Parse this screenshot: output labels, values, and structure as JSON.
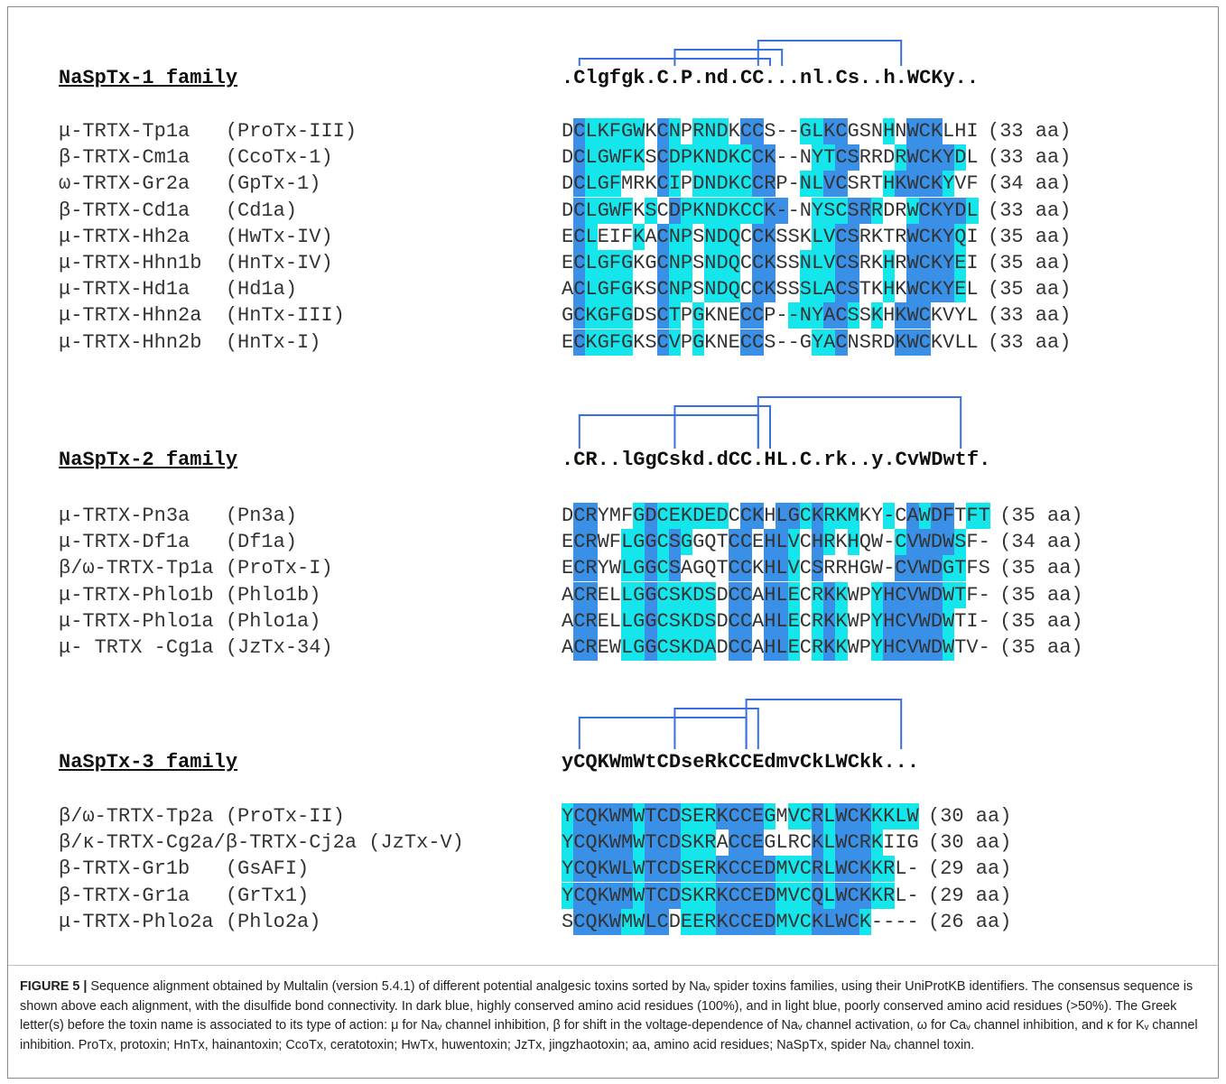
{
  "families": [
    {
      "title": "NaSpTx-1 family",
      "consensus": ".Clgfgk.C.P.nd.CC...nl.Cs..h.WCKy..",
      "title_top": 74,
      "first_row_top": 131,
      "bonds": {
        "bar_top": 45,
        "bar_bottom": 73,
        "links": [
          [
            1,
            17,
            28
          ],
          [
            9,
            18,
            23
          ],
          [
            16,
            28,
            10
          ]
        ]
      },
      "rows": [
        {
          "name": "μ-TRTX-Tp1a   (ProTx-III)",
          "seq": "DCLKFGWKCNPRNDKCCS--GLKCGSNHNWCKLHI",
          "cls": ".dlllll.dl.lll.dd...lldd...l.ddd...",
          "len": "(33 aa)"
        },
        {
          "name": "β-TRTX-Cm1a   (CcoTx-1)",
          "seq": "DCLGWFKSCDPKNDKCCK--NYTCSRRDRWCKYDL",
          "cls": ".dlllll.dllllllldd...lldd...lddddl..",
          "len": "(33 aa)"
        },
        {
          "name": "ω-TRTX-Gr2a   (GpTx-1)",
          "seq": "DCLGFMRKCIPDNDKCCRP-NLVCSRTHKWCKYVF",
          "cls": ".dlll...dl.llllldd..lldd...lddddl..",
          "len": "(34 aa)"
        },
        {
          "name": "β-TRTX-Cd1a   (Cd1a)",
          "seq": "DCLGWFKSCDPKNDKCCK--NYSCSRRDRWCKYDL",
          "cls": ".dllll.l.dllllllldd..lllddl..lddddl..",
          "len": "(33 aa)"
        },
        {
          "name": "μ-TRTX-Hh2a   (HwTx-IV)",
          "seq": "ECLEIFKACNPSNDQCCKSSKLVCSRKTRWCKYQI",
          "cls": ".dl...l.dll.lll.dd...lldd....ddddl..",
          "len": "(35 aa)"
        },
        {
          "name": "μ-TRTX-Hhn1b  (HnTx-IV)",
          "seq": "ECLGFGKGCNPSNDQCCKSSNLVCSRKHRWCKYEI",
          "cls": ".dllll..dll.lll.dd..llldd..l.ddddl..",
          "len": "(35 aa)"
        },
        {
          "name": "μ-TRTX-Hd1a   (Hd1a)",
          "seq": "ACLGFGKSCNPSNDQCCKSSSLACSTKHKWCKYEL",
          "cls": ".dllll..dll.lll.dd..llldd..l.ddddl..",
          "len": "(35 aa)"
        },
        {
          "name": "μ-TRTX-Hhn2a  (HnTx-III)",
          "seq": "GCKGFGDSCTPGKNECCP--NYACSSKHKWCKVYL",
          "cls": ".dllll..dl.l...dd..lllddl.l.ddd...",
          "len": "(33 aa)"
        },
        {
          "name": "μ-TRTX-Hhn2b  (HnTx-I)",
          "seq": "ECKGFGKSCVPGKNECCS--GYACNSRDKWCKVLL",
          "cls": ".dllll..dl.l...dd....lld....ddd...",
          "len": "(33 aa)"
        }
      ]
    },
    {
      "title": "NaSpTx-2 family",
      "consensus": ".CR..lGgCskd.dCC.HL.C.rk..y.CvWDwtf.",
      "title_top": 497,
      "first_row_top": 557,
      "bonds": {
        "bar_top": 440,
        "bar_bottom": 497,
        "links": [
          [
            1,
            16,
            30
          ],
          [
            9,
            17,
            25
          ],
          [
            16,
            33,
            10
          ]
        ]
      },
      "rows": [
        {
          "name": "μ-TRTX-Pn3a   (Pn3a)",
          "seq": "DCRYMFGDCEKDEDCCKHLGCKRKMKY-CAWDFTFT",
          "cls": ".dd...ldllllll.dd.ddldlll..l.dldd.ll.",
          "len": "(35 aa)"
        },
        {
          "name": "μ-TRTX-Df1a   (Df1a)",
          "seq": "ECRWFLGGCSGGQTCCEHLVCHRKHQW-CVWDWSF-",
          "cls": ".dd..lldldl...dd.ddl.dl.l...lddddl.",
          "len": "(34 aa)"
        },
        {
          "name": "β/ω-TRTX-Tp1a (ProTx-I)",
          "seq": "ECRYWLGGCSAGQTCCKHLVCSRRHGW-CVWDGTFS",
          "cls": ".dd..lldld....dd.ddl.d......ddddll.",
          "len": "(35 aa)"
        },
        {
          "name": "μ-TRTX-Phlo1b (Phlo1b)",
          "seq": "ACRELLGGCSKDSDCCAHLECRKKWPYHCVWDWTF-",
          "cls": ".dd..lldlllll.dd.ddl.ldl..ldddddll.",
          "len": "(35 aa)"
        },
        {
          "name": "μ-TRTX-Phlo1a (Phlo1a)",
          "seq": "ACRELLGGCSKDSDCCAHLECRKKWPYHCVWDWTI-",
          "cls": ".dd..lldlllll.dd.ddl.ldl..ldddddl..",
          "len": "(35 aa)"
        },
        {
          "name": "μ- TRTX -Cg1a (JzTx-34)",
          "seq": "ACREWLGGCSKDADCCAHLECRKKWPYHCVWDWTV-",
          "cls": ".dd..lldlllll.dd.ddl.ldl..ldddddl..",
          "len": "(35 aa)"
        }
      ]
    },
    {
      "title": "NaSpTx-3 family",
      "consensus": "yCQKWmWtCDseRkCCEdmvCkLWCkk...",
      "title_top": 832,
      "first_row_top": 890,
      "bonds": {
        "bar_top": 775,
        "bar_bottom": 830,
        "links": [
          [
            1,
            15,
            24
          ],
          [
            9,
            16,
            21
          ],
          [
            15,
            28,
            10
          ]
        ]
      },
      "rows": [
        {
          "name": "β/ω-TRTX-Tp2a (ProTx-II)",
          "seq": "YCQKWMWTCDSERKCCEGMVCRLWCKKKLW",
          "cls": "ldddddldddlllddddl.lldldddllll...",
          "len": "(30 aa)"
        },
        {
          "name": "β/κ-TRTX-Cg2a/β-TRTX-Cj2a (JzTx-V)",
          "seq": "YCQKWMWTCDSKRACCEGLRCKLWCRKIIG",
          "cls": "ldddddldddlll.ddd....dldddl....",
          "len": "(30 aa)"
        },
        {
          "name": "β-TRTX-Gr1b   (GsAFI)",
          "seq": "YCQKWLWTCDSERKCCEDMVCRLWCKKRL-",
          "cls": "ldddddldddllldddddllldldddll...",
          "len": "(29 aa)"
        },
        {
          "name": "β-TRTX-Gr1a   (GrTx1)",
          "seq": "YCQKWMWTCDSKRKCCEDMVCQLWCKKRL-",
          "cls": "ldddddldddllldddddllldldddll...",
          "len": "(29 aa)"
        },
        {
          "name": "μ-TRTX-Phlo2a (Phlo2a)",
          "seq": "SCQKWMWLCDEERKCCEDMVCKLWCK----",
          "cls": ".ddddlldd.llldddddlllddddl.....",
          "len": "(26 aa)"
        }
      ]
    }
  ],
  "caption": {
    "label": "FIGURE 5 |",
    "text": " Sequence alignment obtained by Multalin (version 5.4.1) of different potential analgesic toxins sorted by Naᵥ spider toxins families, using their UniProtKB identifiers. The consensus sequence is shown above each alignment, with the disulfide bond connectivity. In dark blue, highly conserved amino acid residues (100%), and in light blue, poorly conserved amino acid residues (>50%). The Greek letter(s) before the toxin name is associated to its type of action: μ for Naᵥ channel inhibition, β for shift in the voltage-dependence of Naᵥ channel activation, ω for Caᵥ channel inhibition, and κ for Kᵥ channel inhibition. ProTx, protoxin; HnTx, hainantoxin; CcoTx, ceratotoxin; HwTx, huwentoxin; JzTx, jingzhaotoxin; aa, amino acid residues; NaSpTx, spider Naᵥ channel toxin."
  },
  "colors": {
    "dark_blue": "#3a8fe6",
    "light_blue": "#14e6ec",
    "bond_line": "#3a6fe0"
  }
}
